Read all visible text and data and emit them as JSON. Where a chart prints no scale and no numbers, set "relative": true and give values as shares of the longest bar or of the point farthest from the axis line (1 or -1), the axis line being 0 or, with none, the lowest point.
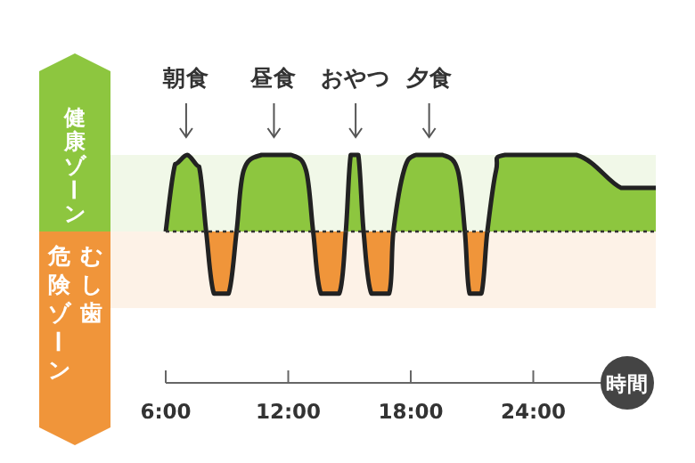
{
  "chart_data": {
    "type": "area",
    "relative": true,
    "xlabel": "時間",
    "xlim": [
      6,
      30
    ],
    "xticks": [
      {
        "value": 6,
        "label": "6:00"
      },
      {
        "value": 12,
        "label": "12:00"
      },
      {
        "value": 18,
        "label": "18:00"
      },
      {
        "value": 24,
        "label": "24:00"
      }
    ],
    "series": [
      {
        "color": "#222222",
        "x": [
          6.0,
          6.46,
          7.05,
          7.63,
          7.98,
          8.36,
          9.08,
          9.47,
          9.82,
          10.69,
          12.14,
          12.87,
          13.22,
          13.6,
          14.5,
          14.82,
          15.06,
          15.43,
          15.69,
          16.07,
          16.94,
          17.15,
          17.67,
          18.25,
          19.56,
          20.3,
          20.65,
          20.88,
          21.46,
          21.75,
          22.18,
          22.62,
          26.11,
          28.3,
          30.0
        ],
        "values": [
          0,
          0.88,
          1,
          0.85,
          0,
          -0.81,
          -0.81,
          0,
          0.8,
          1,
          1,
          0.8,
          0,
          -0.81,
          -0.81,
          0,
          1,
          1,
          0,
          -0.81,
          -0.81,
          0,
          0.8,
          1,
          1,
          0.8,
          0,
          -0.81,
          -0.81,
          0,
          0.8,
          1,
          1,
          0.57,
          0.57
        ]
      }
    ],
    "ref_lines": [
      {
        "axis": "y",
        "value": 0,
        "line_style": "dotted",
        "color": "#333333"
      }
    ],
    "bands": [
      {
        "axis": "y",
        "from": 0,
        "to": 1,
        "label": "健康ゾーン",
        "color": "#8dc63f"
      },
      {
        "axis": "y",
        "from": -1,
        "to": 0,
        "label": "むし歯危険ゾーン",
        "color": "#f0953a"
      }
    ],
    "annotations": [
      {
        "text": "朝食",
        "x": 7.0,
        "y": 1
      },
      {
        "text": "昼食",
        "x": 11.3,
        "y": 1
      },
      {
        "text": "おやつ",
        "x": 15.3,
        "y": 1
      },
      {
        "text": "夕食",
        "x": 18.9,
        "y": 1
      }
    ]
  }
}
